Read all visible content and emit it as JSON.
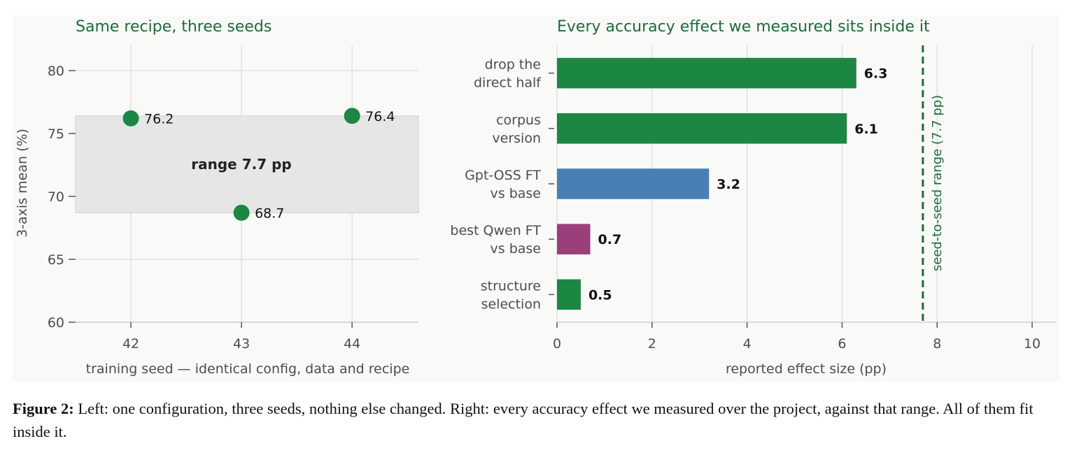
{
  "chart_data": [
    {
      "type": "scatter",
      "title": "Same recipe, three seeds",
      "xlabel": "training seed — identical config, data and recipe",
      "ylabel": "3-axis mean (%)",
      "xlim": [
        41.5,
        44.6
      ],
      "ylim": [
        60,
        82
      ],
      "xticks": [
        42,
        43,
        44
      ],
      "yticks": [
        60,
        65,
        70,
        75,
        80
      ],
      "grid": true,
      "points": [
        {
          "x": 42,
          "y": 76.2,
          "label": "76.2"
        },
        {
          "x": 43,
          "y": 68.7,
          "label": "68.7"
        },
        {
          "x": 44,
          "y": 76.4,
          "label": "76.4"
        }
      ],
      "band": {
        "y0": 68.7,
        "y1": 76.4,
        "label": "range 7.7 pp"
      },
      "colors": {
        "point": "#1b8742",
        "band": "#e6e6e6"
      }
    },
    {
      "type": "bar",
      "orientation": "horizontal",
      "title": "Every accuracy effect we measured sits inside it",
      "xlabel": "reported effect size (pp)",
      "xlim": [
        0,
        10.5
      ],
      "xticks": [
        0,
        2,
        4,
        6,
        8,
        10
      ],
      "grid": true,
      "categories": [
        [
          "drop the",
          "direct half"
        ],
        [
          "corpus",
          "version"
        ],
        [
          "Gpt-OSS FT",
          "vs base"
        ],
        [
          "best Qwen FT",
          "vs base"
        ],
        [
          "structure",
          "selection"
        ]
      ],
      "values": [
        6.3,
        6.1,
        3.2,
        0.7,
        0.5
      ],
      "value_labels": [
        "6.3",
        "6.1",
        "3.2",
        "0.7",
        "0.5"
      ],
      "bar_colors": [
        "#1b8742",
        "#1b8742",
        "#4a7fb5",
        "#9b3f7b",
        "#1b8742"
      ],
      "reference_line": {
        "x": 7.7,
        "label": "seed-to-seed range (7.7 pp)",
        "color": "#1e6b3a",
        "style": "dashed"
      }
    }
  ],
  "caption": {
    "lead": "Figure 2:",
    "text": "Left: one configuration, three seeds, nothing else changed. Right: every accuracy effect we measured over the project, against that range. All of them fit inside it."
  }
}
